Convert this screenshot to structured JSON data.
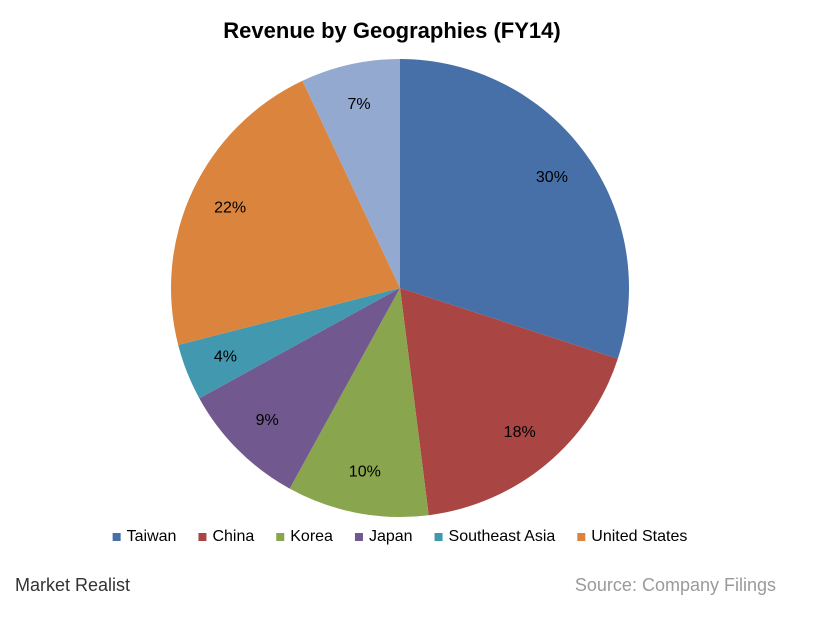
{
  "chart_data": {
    "type": "pie",
    "title": "Revenue by Geographies (FY14)",
    "categories": [
      "Taiwan",
      "China",
      "Korea",
      "Japan",
      "Southeast Asia",
      "United States",
      null
    ],
    "values": [
      30,
      18,
      10,
      9,
      4,
      22,
      7
    ],
    "value_labels": [
      "30%",
      "18%",
      "10%",
      "9%",
      "4%",
      "22%",
      "7%"
    ],
    "colors": [
      "#4670a7",
      "#a94543",
      "#89a54e",
      "#71588f",
      "#4198af",
      "#db843d",
      "#93a9cf"
    ],
    "legend": "bottom",
    "watermark": "Market Realist",
    "source": "Source: Company Filings"
  }
}
